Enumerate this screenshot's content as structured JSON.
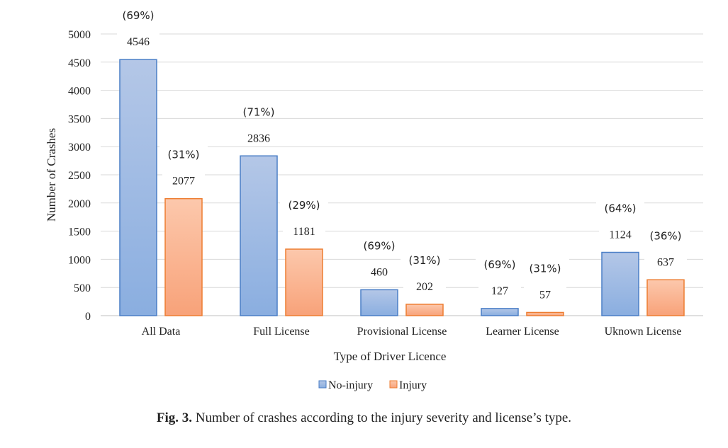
{
  "chart_data": {
    "type": "bar",
    "categories": [
      "All Data",
      "Full License",
      "Provisional License",
      "Learner License",
      "Uknown License"
    ],
    "series": [
      {
        "name": "No-injury",
        "values": [
          4546,
          2836,
          460,
          127,
          1124
        ],
        "percent_labels": [
          "(69%)",
          "(71%)",
          "(69%)",
          "(69%)",
          "(64%)"
        ]
      },
      {
        "name": "Injury",
        "values": [
          2077,
          1181,
          202,
          57,
          637
        ],
        "percent_labels": [
          "(31%)",
          "(29%)",
          "(31%)",
          "(31%)",
          "(36%)"
        ]
      }
    ],
    "xlabel": "Type of Driver Licence",
    "ylabel": "Number of Crashes",
    "ylim": [
      0,
      5000
    ],
    "yticks": [
      0,
      500,
      1000,
      1500,
      2000,
      2500,
      3000,
      3500,
      4000,
      4500,
      5000
    ],
    "grid": true,
    "legend_position": "bottom",
    "colors": {
      "no_injury_top": "#b4c7e7",
      "no_injury_bottom": "#8aaee0",
      "no_injury_edge": "#4a7ec6",
      "injury_top": "#fcc8ac",
      "injury_bottom": "#f8a279",
      "injury_edge": "#ed7d31",
      "grid": "#d9d9d9"
    }
  },
  "caption": {
    "label": "Fig. 3.",
    "text": "Number of crashes according to the injury severity and license’s type."
  }
}
